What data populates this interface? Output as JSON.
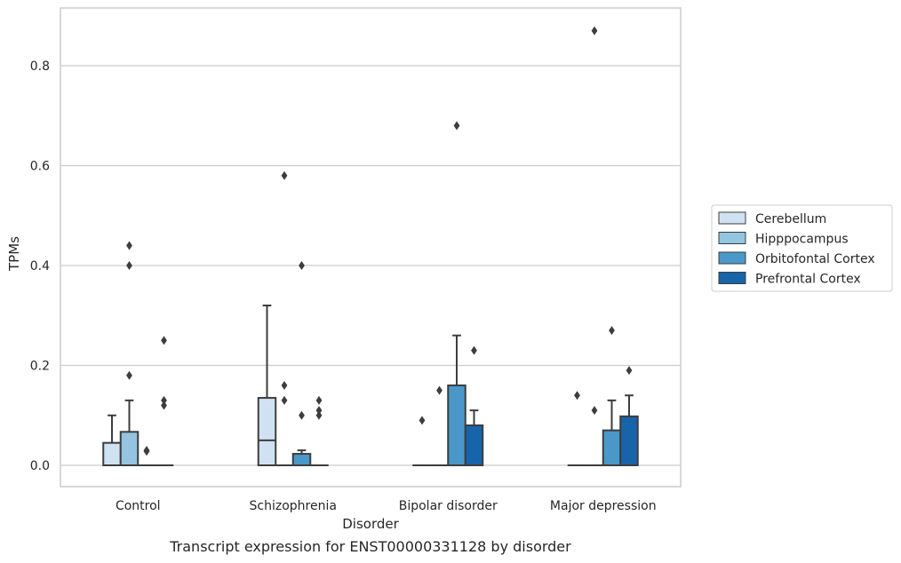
{
  "caption": "Transcript expression for ENST00000331128 by disorder",
  "chart_data": {
    "type": "box",
    "xlabel": "Disorder",
    "ylabel": "TPMs",
    "ylim": [
      -0.042,
      0.915
    ],
    "yticks": [
      0.0,
      0.2,
      0.4,
      0.6,
      0.8
    ],
    "ytick_labels": [
      "0.0",
      "0.2",
      "0.4",
      "0.6",
      "0.8"
    ],
    "grid": "horizontal",
    "legend_position": "right",
    "categories": [
      "Control",
      "Schizophrenia",
      "Bipolar disorder",
      "Major depression"
    ],
    "series": [
      {
        "name": "Cerebellum",
        "color": "#d0e1f2",
        "boxes": [
          {
            "q1": 0.0,
            "median": 0.0,
            "q3": 0.045,
            "whislo": 0.0,
            "whishi": 0.1,
            "fliers": []
          },
          {
            "q1": 0.0,
            "median": 0.05,
            "q3": 0.135,
            "whislo": 0.0,
            "whishi": 0.32,
            "fliers": []
          },
          {
            "q1": 0.0,
            "median": 0.0,
            "q3": 0.0,
            "whislo": 0.0,
            "whishi": 0.0,
            "fliers": [
              0.09
            ]
          },
          {
            "q1": 0.0,
            "median": 0.0,
            "q3": 0.0,
            "whislo": 0.0,
            "whishi": 0.0,
            "fliers": [
              0.14
            ]
          }
        ]
      },
      {
        "name": "Hipppocampus",
        "color": "#94c4df",
        "boxes": [
          {
            "q1": 0.0,
            "median": 0.0,
            "q3": 0.067,
            "whislo": 0.0,
            "whishi": 0.13,
            "fliers": [
              0.18,
              0.4,
              0.44
            ]
          },
          {
            "q1": 0.0,
            "median": 0.0,
            "q3": 0.0,
            "whislo": 0.0,
            "whishi": 0.0,
            "fliers": [
              0.13,
              0.16,
              0.58
            ]
          },
          {
            "q1": 0.0,
            "median": 0.0,
            "q3": 0.0,
            "whislo": 0.0,
            "whishi": 0.0,
            "fliers": [
              0.15
            ]
          },
          {
            "q1": 0.0,
            "median": 0.0,
            "q3": 0.0,
            "whislo": 0.0,
            "whishi": 0.0,
            "fliers": [
              0.87,
              0.11
            ]
          }
        ]
      },
      {
        "name": "Orbitofontal Cortex",
        "color": "#4a98c9",
        "boxes": [
          {
            "q1": 0.0,
            "median": 0.0,
            "q3": 0.0,
            "whislo": 0.0,
            "whishi": 0.0,
            "fliers": [
              0.03,
              0.028
            ]
          },
          {
            "q1": 0.0,
            "median": 0.0,
            "q3": 0.023,
            "whislo": 0.0,
            "whishi": 0.03,
            "fliers": [
              0.1,
              0.4
            ]
          },
          {
            "q1": 0.0,
            "median": 0.0,
            "q3": 0.16,
            "whislo": 0.0,
            "whishi": 0.26,
            "fliers": [
              0.68
            ]
          },
          {
            "q1": 0.0,
            "median": 0.0,
            "q3": 0.07,
            "whislo": 0.0,
            "whishi": 0.13,
            "fliers": [
              0.27
            ]
          }
        ]
      },
      {
        "name": "Prefrontal Cortex",
        "color": "#1764ab",
        "boxes": [
          {
            "q1": 0.0,
            "median": 0.0,
            "q3": 0.0,
            "whislo": 0.0,
            "whishi": 0.0,
            "fliers": [
              0.12,
              0.13,
              0.25
            ]
          },
          {
            "q1": 0.0,
            "median": 0.0,
            "q3": 0.0,
            "whislo": 0.0,
            "whishi": 0.0,
            "fliers": [
              0.1,
              0.11,
              0.13
            ]
          },
          {
            "q1": 0.0,
            "median": 0.0,
            "q3": 0.08,
            "whislo": 0.0,
            "whishi": 0.11,
            "fliers": [
              0.23
            ]
          },
          {
            "q1": 0.0,
            "median": 0.0,
            "q3": 0.098,
            "whislo": 0.0,
            "whishi": 0.14,
            "fliers": [
              0.19
            ]
          }
        ]
      }
    ]
  }
}
